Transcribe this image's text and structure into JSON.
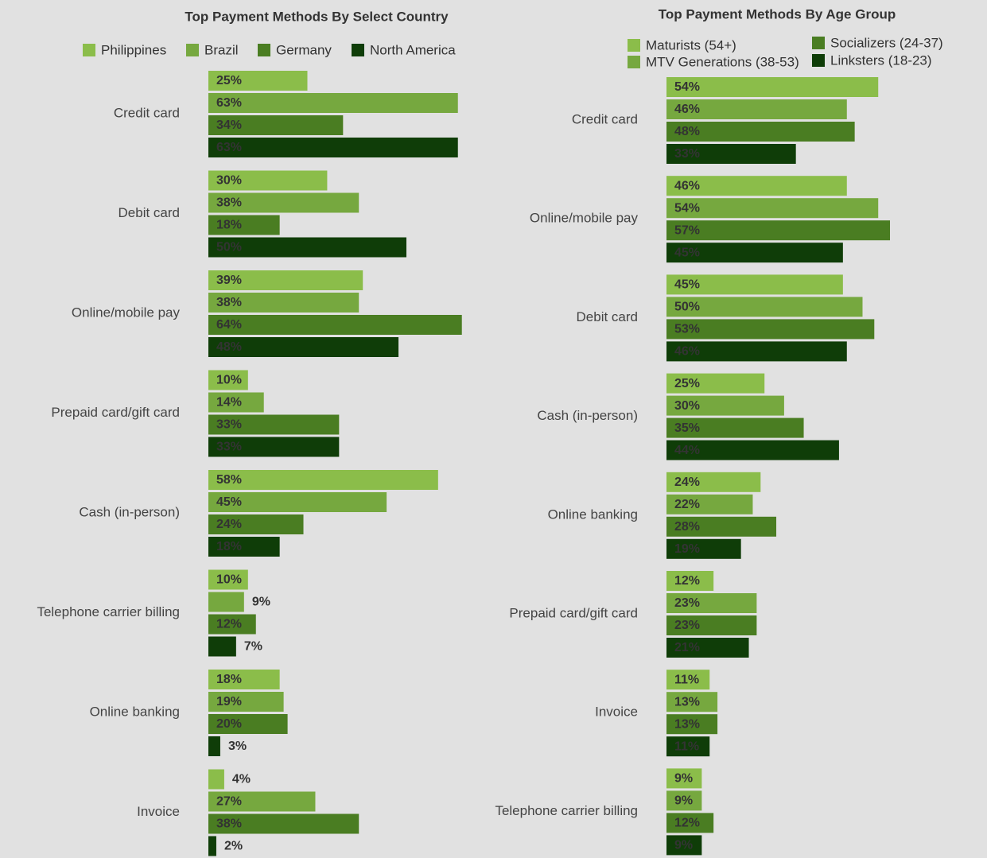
{
  "chart_data": [
    {
      "type": "bar",
      "orientation": "horizontal",
      "title": "Top Payment Methods By Select Country",
      "categories": [
        "Credit card",
        "Debit card",
        "Online/mobile pay",
        "Prepaid card/gift card",
        "Cash (in-person)",
        "Telephone carrier billing",
        "Online banking",
        "Invoice"
      ],
      "series": [
        {
          "name": "Philippines",
          "color": "#8bbd4a",
          "values": [
            25,
            30,
            39,
            10,
            58,
            10,
            18,
            4
          ],
          "value_labels": [
            "25%",
            "30%",
            "39%",
            "10%",
            "58%",
            "10%",
            "18%",
            "4%"
          ]
        },
        {
          "name": "Brazil",
          "color": "#76a83f",
          "values": [
            63,
            38,
            38,
            14,
            45,
            9,
            19,
            27
          ],
          "value_labels": [
            "63%",
            "38%",
            "38%",
            "14%",
            "45%",
            "9%",
            "19%",
            "27%"
          ]
        },
        {
          "name": "Germany",
          "color": "#4a7d22",
          "values": [
            34,
            18,
            64,
            33,
            24,
            12,
            20,
            38
          ],
          "value_labels": [
            "34%",
            "18%",
            "64%",
            "33%",
            "24%",
            "12%",
            "20%",
            "38%"
          ]
        },
        {
          "name": "North America",
          "color": "#0f3d08",
          "values": [
            63,
            50,
            48,
            33,
            18,
            7,
            3,
            2
          ],
          "value_labels": [
            "63%",
            "50%",
            "48%",
            "33%",
            "18%",
            "7%",
            "3%",
            "2%"
          ]
        }
      ]
    },
    {
      "type": "bar",
      "orientation": "horizontal",
      "title": "Top Payment Methods By Age Group",
      "categories": [
        "Credit card",
        "Online/mobile pay",
        "Debit card",
        "Cash (in-person)",
        "Online banking",
        "Prepaid card/gift card",
        "Invoice",
        "Telephone carrier billing"
      ],
      "series": [
        {
          "name": "Maturists (54+)",
          "color": "#8bbd4a",
          "values": [
            54,
            46,
            45,
            25,
            24,
            12,
            11,
            9
          ],
          "value_labels": [
            "54%",
            "46%",
            "45%",
            "25%",
            "24%",
            "12%",
            "11%",
            "9%"
          ]
        },
        {
          "name": "MTV Generations (38-53)",
          "color": "#76a83f",
          "values": [
            46,
            54,
            50,
            30,
            22,
            23,
            13,
            9
          ],
          "value_labels": [
            "46%",
            "54%",
            "50%",
            "30%",
            "22%",
            "23%",
            "13%",
            "9%"
          ]
        },
        {
          "name": "Socializers (24-37)",
          "color": "#4a7d22",
          "values": [
            48,
            57,
            53,
            35,
            28,
            23,
            13,
            12
          ],
          "value_labels": [
            "48%",
            "57%",
            "53%",
            "35%",
            "28%",
            "23%",
            "13%",
            "12%"
          ]
        },
        {
          "name": "Linksters (18-23)",
          "color": "#0f3d08",
          "values": [
            33,
            45,
            46,
            44,
            19,
            21,
            11,
            9
          ],
          "value_labels": [
            "33%",
            "45%",
            "46%",
            "44%",
            "19%",
            "21%",
            "11%",
            "9%"
          ]
        }
      ]
    }
  ]
}
